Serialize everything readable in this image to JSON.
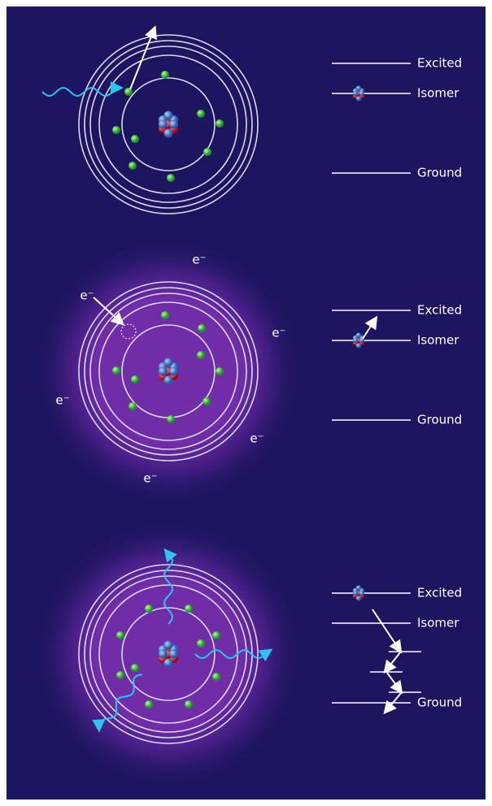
{
  "panels": [
    {
      "levels": [
        "Excited",
        "Isomer",
        "Ground"
      ]
    },
    {
      "levels": [
        "Excited",
        "Isomer",
        "Ground"
      ],
      "electrons": [
        "e⁻",
        "e⁻",
        "e⁻",
        "e⁻",
        "e⁻",
        "e⁻"
      ]
    },
    {
      "levels": [
        "Excited",
        "Isomer",
        "Ground"
      ]
    }
  ]
}
